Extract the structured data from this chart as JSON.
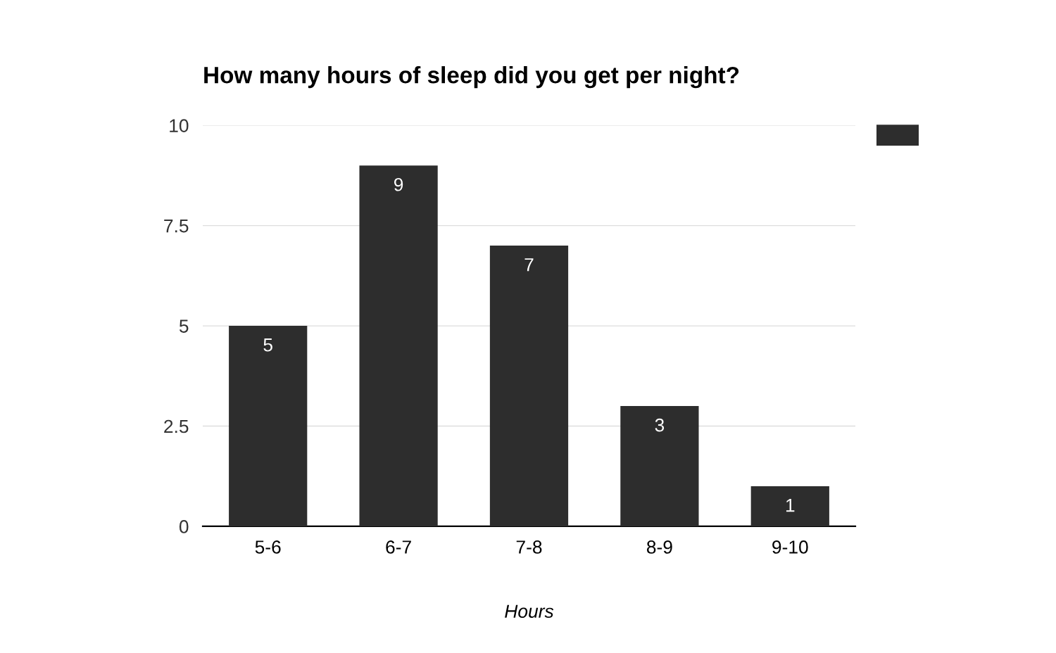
{
  "chart_data": {
    "type": "bar",
    "title": "How many hours of sleep did you get per night?",
    "xlabel": "Hours",
    "categories": [
      "5-6",
      "6-7",
      "7-8",
      "8-9",
      "9-10"
    ],
    "series": [
      {
        "color": "#2d2d2d",
        "values": [
          5,
          9,
          7,
          3,
          1
        ]
      }
    ],
    "ylim": [
      0,
      10
    ],
    "yticks": [
      0,
      2.5,
      5,
      7.5,
      10
    ],
    "grid": "y",
    "data_labels": true
  }
}
